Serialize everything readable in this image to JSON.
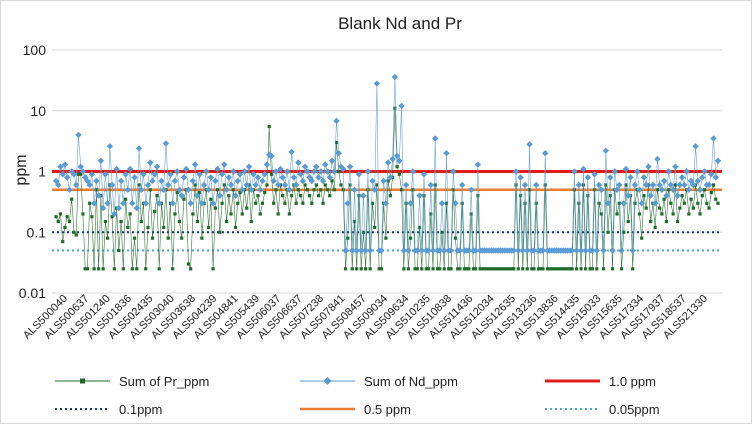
{
  "chart_data": {
    "type": "line",
    "title": "Blank Nd and Pr",
    "xlabel": "",
    "ylabel": "ppm",
    "yscale": "log",
    "ylim": [
      0.01,
      100
    ],
    "yticks": [
      "0.01",
      "0.1",
      "1",
      "10",
      "100"
    ],
    "grid": true,
    "legend_position": "bottom",
    "xtick_labels": [
      "ALS500040",
      "ALS500637",
      "ALS501240",
      "ALS501836",
      "ALS502435",
      "ALS503040",
      "ALS503638",
      "ALS504239",
      "ALS504841",
      "ALS505439",
      "ALS506037",
      "ALS506637",
      "ALS507238",
      "ALS507841",
      "ALS508457",
      "ALS509034",
      "ALS509634",
      "ALS510235",
      "ALS510838",
      "ALS511436",
      "ALS512034",
      "ALS512635",
      "ALS513236",
      "ALS513836",
      "ALS514435",
      "ALS515033",
      "ALS515635",
      "ALS517334",
      "ALS517937",
      "ALS518537",
      "ALS521330"
    ],
    "series": [
      {
        "name": "Sum of Pr_ppm",
        "color": "#1e6b2a",
        "style": "line-marker-square",
        "values": [
          0.18,
          0.15,
          0.2,
          0.07,
          0.12,
          0.18,
          0.15,
          0.35,
          0.1,
          0.09,
          0.9,
          0.9,
          0.2,
          0.025,
          0.025,
          0.3,
          0.18,
          0.025,
          0.5,
          0.025,
          0.4,
          0.025,
          0.15,
          0.08,
          0.6,
          0.18,
          0.025,
          0.25,
          0.05,
          0.15,
          0.025,
          0.35,
          0.12,
          0.2,
          0.025,
          0.08,
          0.025,
          0.6,
          0.15,
          0.3,
          0.025,
          0.12,
          0.5,
          0.08,
          0.22,
          0.4,
          0.025,
          0.3,
          0.12,
          0.5,
          0.08,
          0.3,
          0.025,
          0.2,
          0.45,
          0.15,
          0.08,
          0.35,
          0.5,
          0.03,
          0.025,
          0.2,
          0.6,
          0.15,
          0.45,
          0.08,
          0.3,
          0.5,
          0.12,
          0.35,
          0.025,
          0.25,
          0.5,
          0.1,
          0.3,
          0.6,
          0.15,
          0.4,
          0.2,
          0.5,
          0.12,
          0.3,
          0.45,
          0.2,
          0.5,
          0.25,
          0.6,
          0.15,
          0.5,
          0.3,
          0.4,
          0.2,
          0.3,
          0.45,
          0.6,
          5.5,
          0.9,
          0.3,
          0.5,
          0.2,
          0.6,
          0.4,
          0.3,
          0.5,
          0.2,
          0.4,
          0.6,
          0.3,
          0.5,
          0.4,
          0.3,
          0.6,
          0.5,
          0.4,
          0.3,
          0.5,
          0.6,
          0.4,
          0.5,
          0.3,
          0.6,
          0.5,
          0.4,
          0.7,
          0.5,
          3.0,
          1.0,
          0.6,
          0.5,
          0.025,
          0.08,
          0.6,
          0.025,
          0.15,
          0.025,
          0.4,
          0.025,
          0.1,
          0.025,
          0.5,
          0.025,
          0.3,
          0.12,
          0.6,
          0.025,
          0.025,
          0.3,
          0.08,
          0.7,
          0.4,
          0.8,
          11.0,
          1.2,
          0.9,
          0.5,
          0.025,
          0.3,
          0.025,
          0.08,
          0.5,
          0.025,
          0.025,
          0.12,
          0.025,
          0.4,
          0.025,
          0.025,
          0.2,
          0.025,
          0.6,
          0.025,
          0.025,
          0.1,
          0.025,
          0.3,
          0.025,
          0.025,
          0.5,
          0.08,
          0.025,
          0.025,
          0.3,
          0.025,
          0.025,
          0.025,
          0.2,
          0.025,
          0.025,
          0.4,
          0.025,
          0.025,
          0.025,
          0.025,
          0.025,
          0.025,
          0.025,
          0.025,
          0.025,
          0.025,
          0.025,
          0.025,
          0.025,
          0.025,
          0.025,
          0.025,
          0.6,
          0.025,
          0.4,
          0.025,
          0.3,
          0.025,
          0.5,
          0.025,
          0.025,
          0.3,
          0.025,
          0.025,
          0.025,
          0.6,
          0.025,
          0.025,
          0.025,
          0.025,
          0.025,
          0.025,
          0.025,
          0.025,
          0.025,
          0.025,
          0.025,
          0.025,
          0.5,
          0.025,
          0.3,
          0.025,
          0.6,
          0.025,
          0.4,
          0.025,
          0.025,
          0.5,
          0.025,
          0.3,
          0.2,
          0.025,
          0.6,
          0.1,
          0.4,
          0.025,
          0.5,
          0.2,
          0.3,
          0.025,
          0.1,
          0.6,
          0.15,
          0.4,
          0.025,
          0.3,
          0.5,
          0.2,
          0.08,
          0.4,
          0.25,
          0.6,
          0.15,
          0.3,
          0.12,
          0.5,
          0.25,
          0.2,
          0.35,
          0.15,
          0.5,
          0.3,
          0.2,
          0.6,
          0.15,
          0.25,
          0.4,
          0.3,
          0.5,
          0.2,
          0.35,
          0.25,
          0.6,
          0.3,
          0.2,
          0.4,
          0.5,
          0.3,
          0.25,
          0.45,
          0.6,
          0.35,
          0.3
        ]
      },
      {
        "name": "Sum of Nd_ppm",
        "color": "#5b9bd5",
        "style": "line-marker-diamond",
        "values": [
          0.7,
          0.6,
          1.2,
          0.9,
          1.3,
          0.8,
          0.5,
          1.0,
          0.9,
          0.6,
          4.0,
          1.2,
          1.0,
          0.8,
          0.7,
          0.6,
          0.9,
          0.3,
          0.7,
          0.4,
          1.5,
          0.25,
          0.9,
          0.3,
          2.6,
          0.6,
          0.2,
          1.1,
          0.25,
          0.7,
          0.3,
          0.9,
          0.5,
          1.1,
          0.3,
          0.8,
          0.25,
          2.4,
          0.5,
          0.9,
          0.3,
          0.6,
          1.4,
          0.7,
          0.9,
          1.2,
          0.3,
          0.7,
          0.5,
          2.9,
          0.6,
          0.9,
          0.3,
          0.7,
          1.0,
          0.5,
          0.4,
          0.8,
          1.1,
          0.5,
          0.3,
          0.7,
          1.3,
          0.4,
          0.9,
          0.3,
          0.6,
          1.0,
          0.5,
          0.8,
          0.3,
          0.7,
          1.1,
          0.4,
          0.9,
          1.3,
          0.5,
          0.8,
          0.6,
          1.0,
          0.4,
          0.7,
          0.9,
          0.5,
          1.0,
          0.6,
          1.2,
          0.5,
          0.9,
          0.6,
          0.8,
          0.5,
          0.7,
          0.9,
          1.3,
          1.9,
          1.8,
          0.7,
          1.0,
          0.6,
          1.1,
          0.8,
          0.6,
          1.0,
          0.5,
          2.1,
          0.8,
          0.6,
          1.4,
          0.9,
          0.7,
          1.2,
          1.0,
          0.8,
          0.7,
          1.0,
          1.2,
          0.8,
          1.0,
          0.7,
          1.3,
          1.0,
          0.8,
          1.5,
          1.0,
          6.8,
          2.0,
          1.2,
          1.1,
          0.05,
          0.3,
          1.2,
          0.05,
          0.5,
          0.05,
          0.9,
          0.05,
          0.4,
          0.05,
          1.0,
          0.05,
          0.7,
          0.5,
          28.0,
          0.05,
          0.05,
          0.7,
          0.3,
          1.4,
          0.8,
          1.6,
          36.0,
          1.8,
          1.5,
          12.0,
          0.05,
          0.6,
          0.05,
          0.3,
          1.0,
          0.05,
          0.05,
          0.4,
          0.05,
          0.9,
          0.05,
          0.05,
          0.6,
          0.05,
          3.5,
          0.05,
          0.05,
          0.3,
          0.05,
          2.0,
          0.05,
          0.05,
          1.0,
          0.3,
          0.05,
          0.05,
          0.6,
          0.05,
          0.05,
          0.05,
          0.5,
          0.05,
          0.05,
          1.3,
          0.05,
          0.05,
          0.05,
          0.05,
          0.05,
          0.05,
          0.05,
          0.05,
          0.05,
          0.05,
          0.05,
          0.05,
          0.05,
          0.05,
          0.05,
          0.05,
          1.0,
          0.05,
          0.8,
          0.05,
          0.6,
          0.05,
          2.8,
          0.05,
          0.05,
          0.6,
          0.05,
          0.05,
          0.05,
          2.0,
          0.05,
          0.05,
          0.05,
          0.05,
          0.05,
          0.05,
          0.05,
          0.05,
          0.05,
          0.05,
          0.05,
          0.05,
          1.0,
          0.05,
          0.6,
          0.05,
          1.1,
          0.05,
          0.8,
          0.05,
          0.05,
          0.9,
          0.05,
          0.6,
          0.5,
          0.05,
          2.2,
          0.3,
          0.8,
          0.05,
          1.0,
          0.5,
          0.6,
          0.05,
          0.3,
          1.1,
          0.4,
          0.8,
          0.05,
          0.6,
          1.0,
          0.5,
          0.3,
          0.8,
          0.6,
          1.2,
          0.4,
          0.6,
          0.3,
          1.6,
          0.6,
          0.5,
          0.7,
          0.4,
          1.0,
          0.6,
          0.5,
          1.2,
          0.4,
          0.6,
          0.8,
          0.6,
          1.0,
          0.5,
          0.7,
          0.6,
          2.6,
          0.7,
          0.5,
          0.8,
          1.0,
          0.6,
          0.6,
          0.9,
          3.5,
          0.8,
          1.5
        ]
      },
      {
        "name": "1.0 ppm",
        "color": "#e01b1b",
        "style": "hline-solid-thick",
        "value": 1.0
      },
      {
        "name": "0.1ppm",
        "color": "#1f3864",
        "style": "hline-dotted",
        "value": 0.1
      },
      {
        "name": "0.5 ppm",
        "color": "#ed7d31",
        "style": "hline-solid",
        "value": 0.5
      },
      {
        "name": "0.05ppm",
        "color": "#4bacc6",
        "style": "hline-dotted",
        "value": 0.05
      }
    ]
  }
}
